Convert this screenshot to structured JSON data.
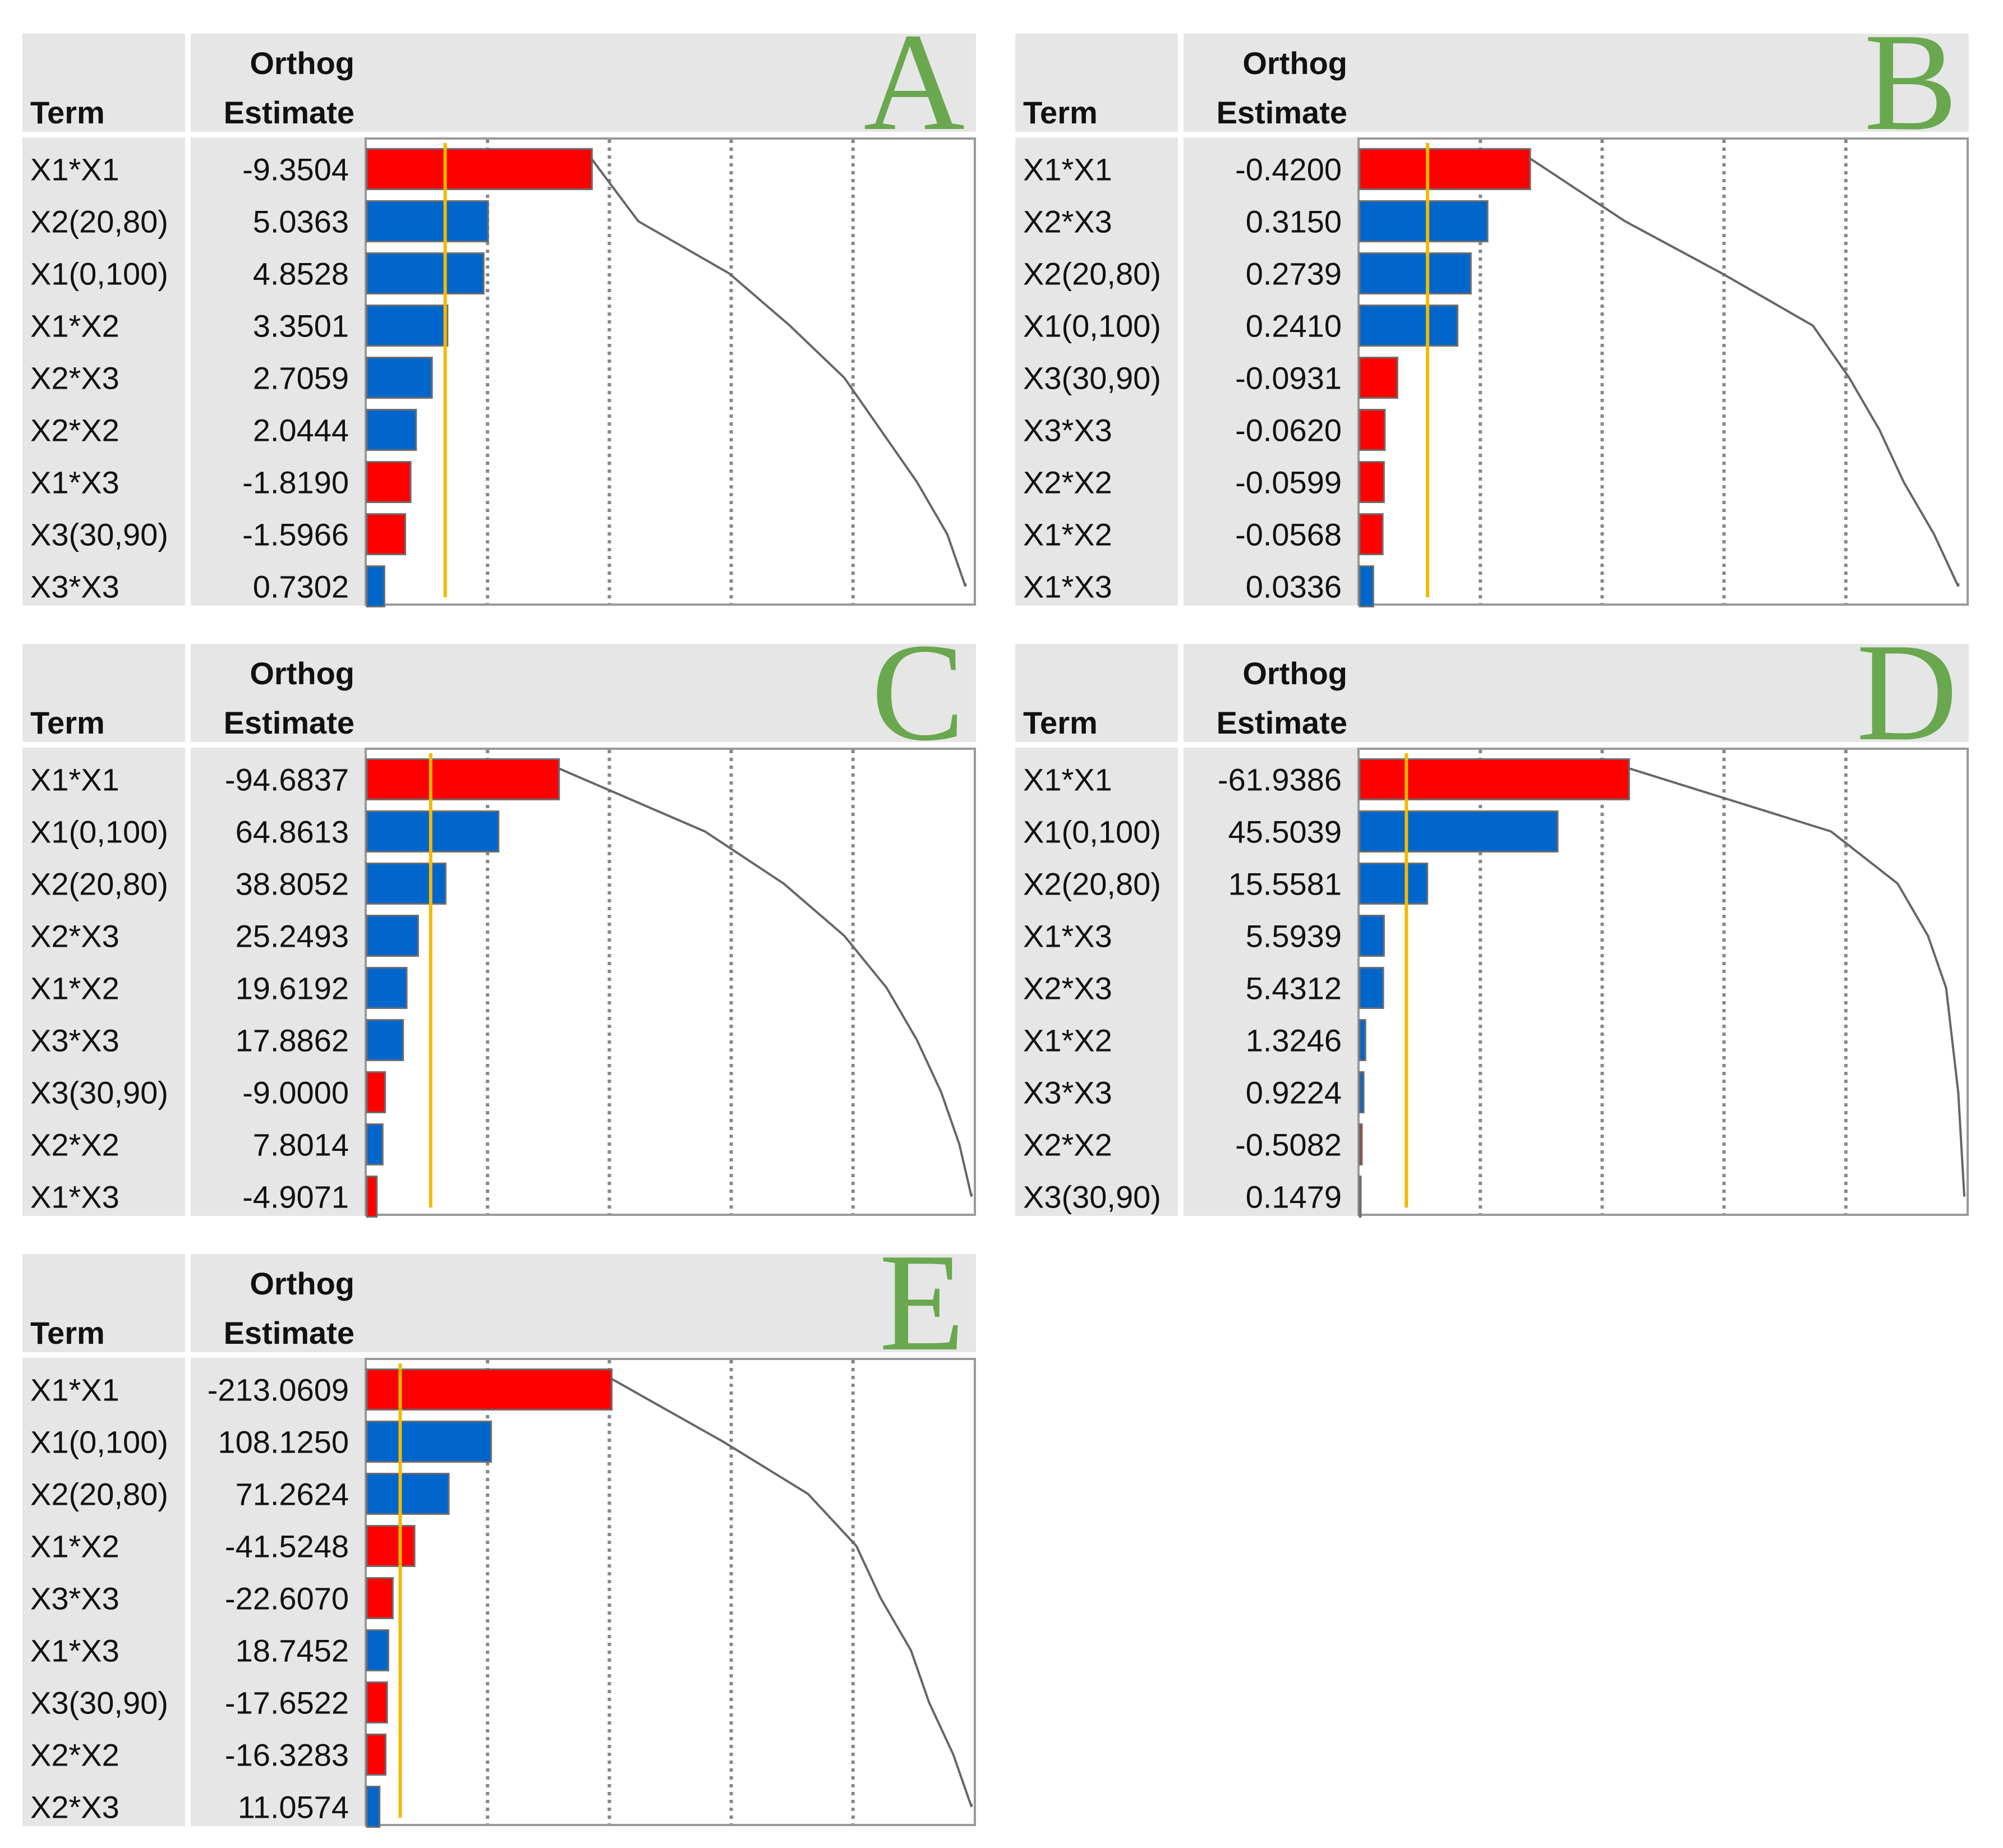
{
  "chart_data": [
    {
      "type": "bar",
      "panel_letter": "A",
      "columns": {
        "term": "Term",
        "estimate_line1": "Orthog",
        "estimate_line2": "Estimate"
      },
      "terms": [
        "X1*X1",
        "X2(20,80)",
        "X1(0,100)",
        "X1*X2",
        "X2*X3",
        "X2*X2",
        "X1*X3",
        "X3(30,90)",
        "X3*X3"
      ],
      "estimate_labels": [
        "-9.3504",
        "5.0363",
        "4.8528",
        "3.3501",
        "2.7059",
        "2.0444",
        "-1.8190",
        "-1.5966",
        "0.7302"
      ],
      "values": [
        -9.3504,
        5.0363,
        4.8528,
        3.3501,
        2.7059,
        2.0444,
        -1.819,
        -1.5966,
        0.7302
      ],
      "scale_max": 25.3,
      "reference_line": 3.3,
      "cumulative_curve": [
        0.29,
        0.45,
        0.6,
        0.7,
        0.79,
        0.85,
        0.91,
        0.96,
        0.99
      ],
      "grid_lines": 4,
      "colors": {
        "negative": "#ff0000",
        "positive": "#0066cc",
        "reference": "#f5b800",
        "grid": "#888888",
        "curve": "#666666"
      }
    },
    {
      "type": "bar",
      "panel_letter": "B",
      "columns": {
        "term": "Term",
        "estimate_line1": "Orthog",
        "estimate_line2": "Estimate"
      },
      "terms": [
        "X1*X1",
        "X2*X3",
        "X2(20,80)",
        "X1(0,100)",
        "X3(30,90)",
        "X3*X3",
        "X2*X2",
        "X1*X2",
        "X1*X3"
      ],
      "estimate_labels": [
        "-0.4200",
        "0.3150",
        "0.2739",
        "0.2410",
        "-0.0931",
        "-0.0620",
        "-0.0599",
        "-0.0568",
        "0.0336"
      ],
      "values": [
        -0.42,
        0.315,
        0.2739,
        0.241,
        -0.0931,
        -0.062,
        -0.0599,
        -0.0568,
        0.0336
      ],
      "scale_max": 1.5,
      "reference_line": 0.17,
      "cumulative_curve": [
        0.26,
        0.44,
        0.6,
        0.75,
        0.81,
        0.86,
        0.9,
        0.95,
        0.99
      ],
      "grid_lines": 4,
      "colors": {
        "negative": "#ff0000",
        "positive": "#0066cc",
        "reference": "#f5b800",
        "grid": "#888888",
        "curve": "#666666"
      }
    },
    {
      "type": "bar",
      "panel_letter": "C",
      "columns": {
        "term": "Term",
        "estimate_line1": "Orthog",
        "estimate_line2": "Estimate"
      },
      "terms": [
        "X1*X1",
        "X1(0,100)",
        "X2(20,80)",
        "X2*X3",
        "X1*X2",
        "X3*X3",
        "X3(30,90)",
        "X2*X2",
        "X1*X3"
      ],
      "estimate_labels": [
        "-94.6837",
        "64.8613",
        "38.8052",
        "25.2493",
        "19.6192",
        "17.8862",
        "-9.0000",
        "7.8014",
        "-4.9071"
      ],
      "values": [
        -94.6837,
        64.8613,
        38.8052,
        25.2493,
        19.6192,
        17.8862,
        -9.0,
        7.8014,
        -4.9071
      ],
      "scale_max": 300,
      "reference_line": 32,
      "cumulative_curve": [
        0.33,
        0.56,
        0.69,
        0.79,
        0.86,
        0.91,
        0.95,
        0.98,
        1.0
      ],
      "grid_lines": 4,
      "colors": {
        "negative": "#ff0000",
        "positive": "#0066cc",
        "reference": "#f5b800",
        "grid": "#888888",
        "curve": "#666666"
      }
    },
    {
      "type": "bar",
      "panel_letter": "D",
      "columns": {
        "term": "Term",
        "estimate_line1": "Orthog",
        "estimate_line2": "Estimate"
      },
      "terms": [
        "X1*X1",
        "X1(0,100)",
        "X2(20,80)",
        "X1*X3",
        "X2*X3",
        "X1*X2",
        "X3*X3",
        "X2*X2",
        "X3(30,90)"
      ],
      "estimate_labels": [
        "-61.9386",
        "45.5039",
        "15.5581",
        "5.5939",
        "5.4312",
        "1.3246",
        "0.9224",
        "-0.5082",
        "0.1479"
      ],
      "values": [
        -61.9386,
        45.5039,
        15.5581,
        5.5939,
        5.4312,
        1.3246,
        0.9224,
        -0.5082,
        0.1479
      ],
      "scale_max": 140,
      "reference_line": 11,
      "cumulative_curve": [
        0.45,
        0.78,
        0.89,
        0.94,
        0.97,
        0.98,
        0.99,
        0.995,
        1.0
      ],
      "grid_lines": 4,
      "colors": {
        "negative": "#ff0000",
        "positive": "#0066cc",
        "reference": "#f5b800",
        "grid": "#888888",
        "curve": "#666666"
      }
    },
    {
      "type": "bar",
      "panel_letter": "E",
      "columns": {
        "term": "Term",
        "estimate_line1": "Orthog",
        "estimate_line2": "Estimate"
      },
      "terms": [
        "X1*X1",
        "X1(0,100)",
        "X2(20,80)",
        "X1*X2",
        "X3*X3",
        "X1*X3",
        "X3(30,90)",
        "X2*X2",
        "X2*X3"
      ],
      "estimate_labels": [
        "-213.0609",
        "108.1250",
        "71.2624",
        "-41.5248",
        "-22.6070",
        "18.7452",
        "-17.6522",
        "-16.3283",
        "11.0574"
      ],
      "values": [
        -213.0609,
        108.125,
        71.2624,
        -41.5248,
        -22.607,
        18.7452,
        -17.6522,
        -16.3283,
        11.0574
      ],
      "scale_max": 530,
      "reference_line": 30,
      "cumulative_curve": [
        0.41,
        0.59,
        0.73,
        0.81,
        0.85,
        0.9,
        0.93,
        0.97,
        1.0
      ],
      "grid_lines": 4,
      "colors": {
        "negative": "#ff0000",
        "positive": "#0066cc",
        "reference": "#f5b800",
        "grid": "#888888",
        "curve": "#666666"
      }
    }
  ]
}
